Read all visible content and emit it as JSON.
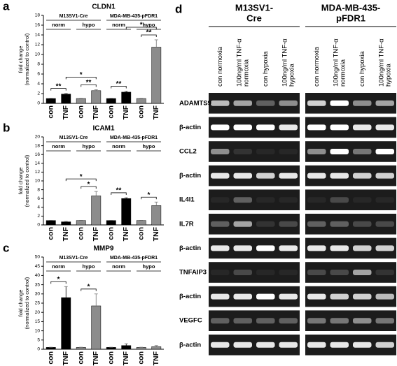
{
  "chart_data": [
    {
      "type": "bar",
      "panel_label": "a",
      "title": "CLDN1",
      "ylabel": [
        "fold change",
        "(normalized to control)"
      ],
      "groups": [
        "M13SV1-Cre",
        "MDA-MB-435-pFDR1"
      ],
      "conditions": [
        "norm",
        "hypo"
      ],
      "condition_colors": [
        "#000000",
        "#8c8c8c"
      ],
      "categories": [
        "con",
        "TNF",
        "con",
        "TNF",
        "con",
        "TNF",
        "con",
        "TNF"
      ],
      "values": [
        1,
        1.9,
        1,
        2.6,
        1,
        2.3,
        1,
        11.5
      ],
      "errors": [
        0.05,
        0.15,
        0.05,
        0.2,
        0.05,
        0.2,
        0.05,
        1.5
      ],
      "ylim": [
        0,
        18
      ],
      "yticks": [
        0,
        2,
        4,
        6,
        8,
        10,
        12,
        14,
        16,
        18
      ],
      "significance": [
        {
          "label": "**",
          "from": 0,
          "to": 1
        },
        {
          "label": "**",
          "from": 2,
          "to": 3
        },
        {
          "label": "*",
          "from": 1,
          "to": 3
        },
        {
          "label": "**",
          "from": 4,
          "to": 5
        },
        {
          "label": "**",
          "from": 6,
          "to": 7
        },
        {
          "label": "*",
          "from": 5,
          "to": 7
        }
      ]
    },
    {
      "type": "bar",
      "panel_label": "b",
      "title": "ICAM1",
      "ylabel": [
        "fold change",
        "(normalized to control)"
      ],
      "groups": [
        "M13SV1-Cre",
        "MDA-MB-435-pFDR1"
      ],
      "conditions": [
        "norm",
        "hypo"
      ],
      "condition_colors": [
        "#000000",
        "#8c8c8c"
      ],
      "categories": [
        "con",
        "TNF",
        "con",
        "TNF",
        "con",
        "TNF",
        "con",
        "TNF"
      ],
      "values": [
        1,
        0.7,
        1,
        6.6,
        1,
        6,
        1,
        4.4
      ],
      "errors": [
        0.05,
        0.1,
        0.05,
        1.0,
        0.05,
        0.2,
        0.05,
        0.8
      ],
      "ylim": [
        0,
        20
      ],
      "yticks": [
        0,
        2,
        4,
        6,
        8,
        10,
        12,
        14,
        16,
        18,
        20
      ],
      "significance": [
        {
          "label": "*",
          "from": 2,
          "to": 3
        },
        {
          "label": "*",
          "from": 1,
          "to": 3
        },
        {
          "label": "**",
          "from": 4,
          "to": 5
        },
        {
          "label": "*",
          "from": 6,
          "to": 7
        }
      ]
    },
    {
      "type": "bar",
      "panel_label": "c",
      "title": "MMP9",
      "ylabel": [
        "fold change",
        "(normalized to control)"
      ],
      "groups": [
        "M13SV1-Cre",
        "MDA-MB-435-pFDR1"
      ],
      "conditions": [
        "norm",
        "hypo"
      ],
      "condition_colors": [
        "#000000",
        "#8c8c8c"
      ],
      "categories": [
        "con",
        "TNF",
        "con",
        "TNF",
        "con",
        "TNF",
        "con",
        "TNF"
      ],
      "values": [
        1,
        28,
        1,
        23.5,
        1,
        2,
        1,
        1.4
      ],
      "errors": [
        0.1,
        6,
        0.1,
        6.5,
        0.1,
        1,
        0.1,
        0.6
      ],
      "ylim": [
        0,
        50
      ],
      "yticks": [
        0,
        5,
        10,
        15,
        20,
        25,
        30,
        35,
        40,
        45,
        50
      ],
      "significance": [
        {
          "label": "*",
          "from": 0,
          "to": 1
        },
        {
          "label": "*",
          "from": 2,
          "to": 3
        }
      ]
    }
  ],
  "gel": {
    "panel_label": "d",
    "groups": [
      {
        "name": [
          "M13SV1-",
          "Cre"
        ],
        "lanes": [
          [
            "con normoxia"
          ],
          [
            "100ng/ml TNF-α",
            "normoxia"
          ],
          [
            "con hypoxia"
          ],
          [
            "100ng/ml TNF-α",
            "hypoxia"
          ]
        ]
      },
      {
        "name": [
          "MDA-MB-435-",
          "pFDR1"
        ],
        "lanes": [
          [
            "con normoxia"
          ],
          [
            "100ng/ml TNF-α",
            "normoxia"
          ],
          [
            "con hypoxia"
          ],
          [
            "100ng/ml TNF-α",
            "hypoxia"
          ]
        ]
      }
    ],
    "rows": [
      "ADAMTS9",
      "β-actin",
      "CCL2",
      "β-actin",
      "IL4I1",
      "IL7R",
      "β-actin",
      "TNFAIP3",
      "β-actin",
      "VEGFC",
      "β-actin"
    ]
  }
}
